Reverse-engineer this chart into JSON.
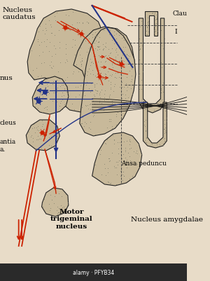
{
  "bg_color": "#e8dcc8",
  "structure_color": "#c8b99a",
  "structure_edge": "#222222",
  "red_color": "#cc2200",
  "blue_color": "#223388",
  "black_color": "#111111",
  "dashed_color": "#444444",
  "labels": {
    "nucleus_caudatus": "Nucleus\ncaudatus",
    "nus": "nus",
    "clau": "Clau",
    "I_label": "I",
    "cleus": "cleus",
    "antia": "antia\na.",
    "ansa": "Ansa peduncu",
    "motor": "Motor\ntrigeminal\nnucleus",
    "amygdalae": "Nucleus amygdalae"
  }
}
